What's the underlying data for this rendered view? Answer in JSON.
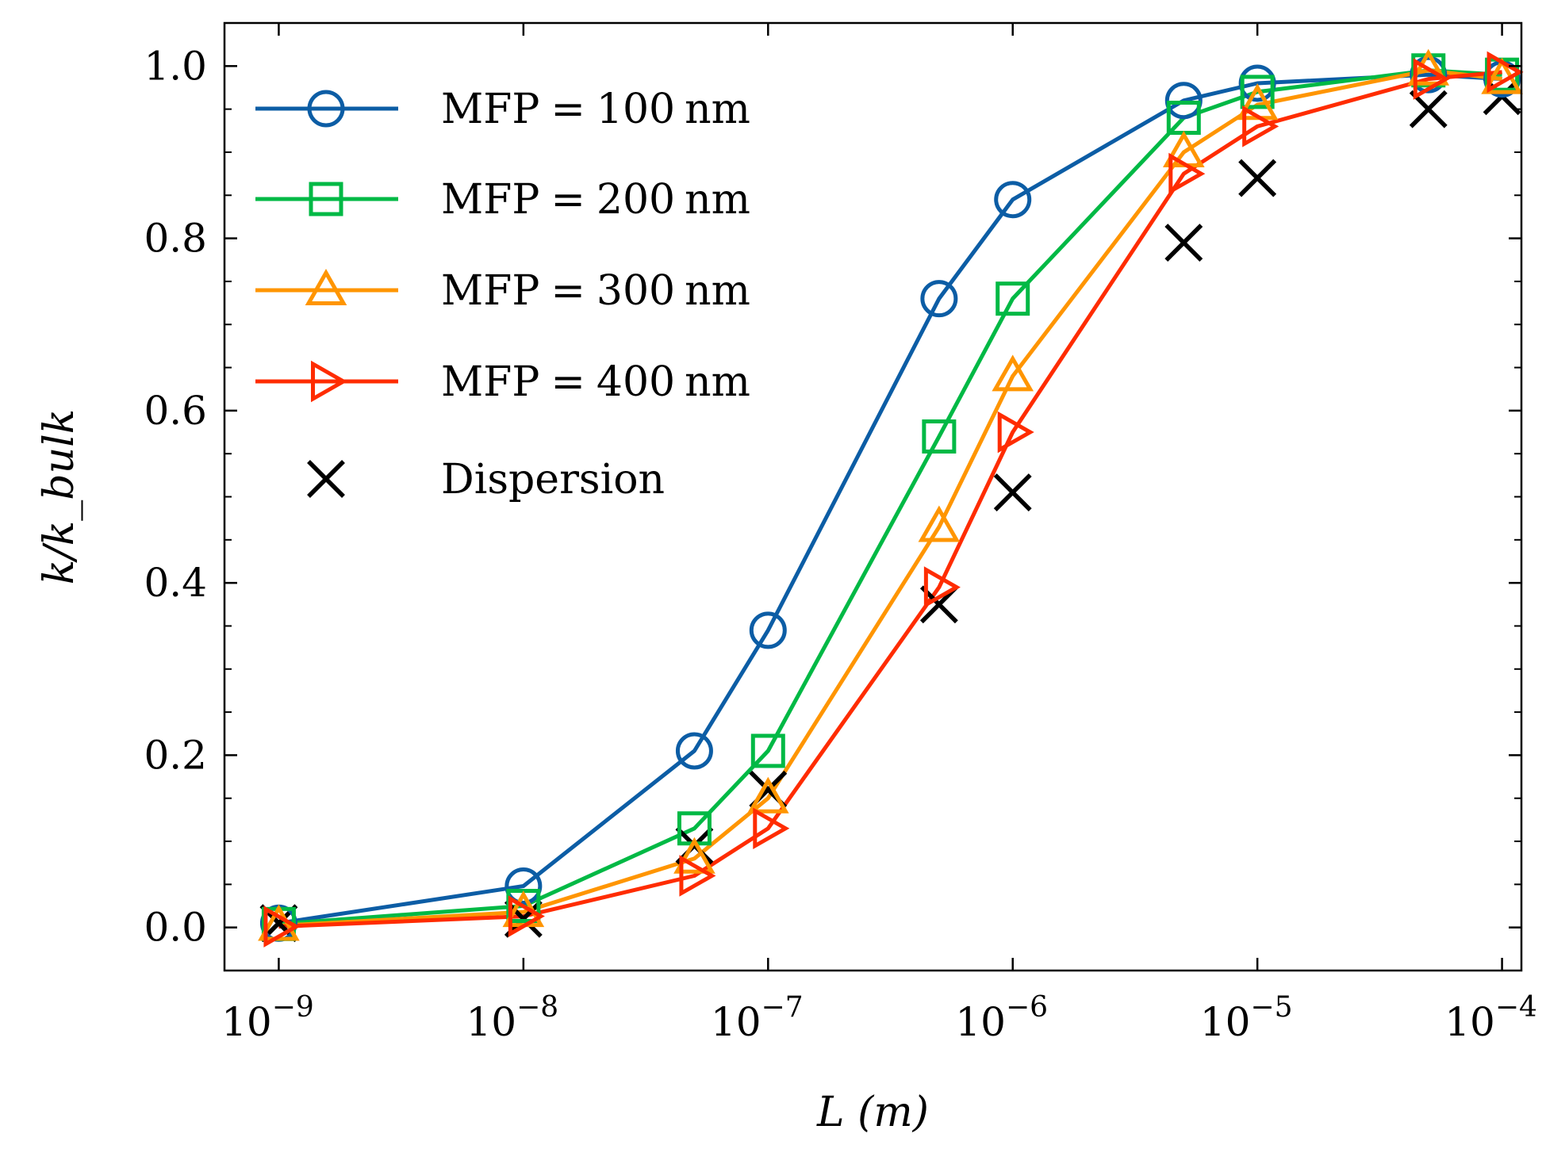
{
  "chart_data": {
    "type": "line",
    "xscale": "log",
    "xlim": [
      6e-10,
      0.00012
    ],
    "ylim": [
      -0.05,
      1.05
    ],
    "xlabel": "L (m)",
    "ylabel": "k/k_bulk",
    "x_ticks": [
      {
        "value": 1e-09,
        "base": "10",
        "exp": "−9"
      },
      {
        "value": 1e-08,
        "base": "10",
        "exp": "−8"
      },
      {
        "value": 1e-07,
        "base": "10",
        "exp": "−7"
      },
      {
        "value": 1e-06,
        "base": "10",
        "exp": "−6"
      },
      {
        "value": 1e-05,
        "base": "10",
        "exp": "−5"
      },
      {
        "value": 0.0001,
        "base": "10",
        "exp": "−4"
      }
    ],
    "y_ticks": [
      {
        "value": 0.0,
        "label": "0.0"
      },
      {
        "value": 0.2,
        "label": "0.2"
      },
      {
        "value": 0.4,
        "label": "0.4"
      },
      {
        "value": 0.6,
        "label": "0.6"
      },
      {
        "value": 0.8,
        "label": "0.8"
      },
      {
        "value": 1.0,
        "label": "1.0"
      }
    ],
    "x": [
      1e-09,
      1e-08,
      5e-08,
      1e-07,
      5e-07,
      1e-06,
      5e-06,
      1e-05,
      5e-05,
      0.0001
    ],
    "series": [
      {
        "name": "MFP = 100 nm",
        "marker": "circle",
        "color": "#0C5DA5",
        "line": true,
        "values": [
          0.005,
          0.048,
          0.205,
          0.345,
          0.73,
          0.845,
          0.96,
          0.98,
          0.99,
          0.985
        ]
      },
      {
        "name": "MFP = 200 nm",
        "marker": "square",
        "color": "#00B945",
        "line": true,
        "values": [
          0.004,
          0.025,
          0.115,
          0.205,
          0.57,
          0.73,
          0.94,
          0.97,
          0.995,
          0.99
        ]
      },
      {
        "name": "MFP = 300 nm",
        "marker": "triangle-up",
        "color": "#FF9500",
        "line": true,
        "values": [
          0.002,
          0.018,
          0.08,
          0.15,
          0.465,
          0.64,
          0.9,
          0.955,
          0.995,
          0.985
        ]
      },
      {
        "name": "MFP = 400 nm",
        "marker": "triangle-right",
        "color": "#FF2C00",
        "line": true,
        "values": [
          0.001,
          0.013,
          0.06,
          0.115,
          0.395,
          0.575,
          0.875,
          0.93,
          0.985,
          0.993
        ]
      },
      {
        "name": "Dispersion",
        "marker": "x",
        "color": "#000000",
        "line": false,
        "values": [
          0.005,
          0.01,
          0.095,
          0.16,
          0.375,
          0.505,
          0.795,
          0.87,
          0.95,
          0.965
        ]
      }
    ],
    "legend": {
      "placement": "upper-left",
      "entries": [
        {
          "prefix": "MFP",
          "eq": "=",
          "num": "100",
          "unit": "nm"
        },
        {
          "prefix": "MFP",
          "eq": "=",
          "num": "200",
          "unit": "nm"
        },
        {
          "prefix": "MFP",
          "eq": "=",
          "num": "300",
          "unit": "nm"
        },
        {
          "prefix": "MFP",
          "eq": "=",
          "num": "400",
          "unit": "nm"
        },
        {
          "text": "Dispersion"
        }
      ]
    },
    "grid": false
  }
}
